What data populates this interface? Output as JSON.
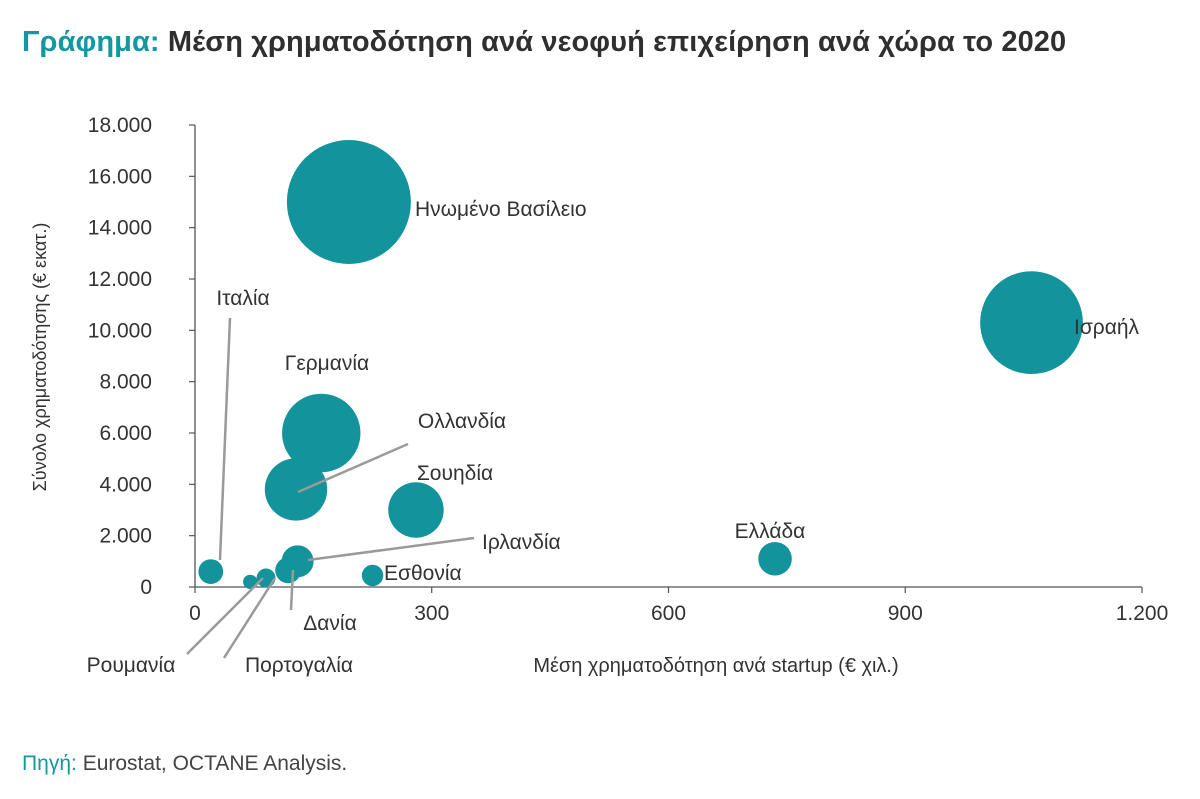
{
  "title": {
    "prefix": "Γράφημα:",
    "text": "Μέση χρηματοδότηση ανά νεοφυή επιχείρηση ανά χώρα το 2020"
  },
  "source": {
    "prefix": "Πηγή:",
    "text": "Eurostat, OCTANE Analysis."
  },
  "colors": {
    "bubble": "#13939c",
    "accent": "#1397a1",
    "leader": "#9a9a9a",
    "axis": "#555555"
  },
  "chart_data": {
    "type": "scatter",
    "title": "Μέση χρηματοδότηση ανά νεοφυή επιχείρηση ανά χώρα το 2020",
    "xlabel": "Μέση χρηματοδότηση ανά startup (€ χιλ.)",
    "ylabel": "Σύνολο χρηματοδότησης (€ εκατ.)",
    "xlim": [
      0,
      1200
    ],
    "ylim": [
      0,
      18000
    ],
    "xticks": [
      0,
      300,
      600,
      900,
      1200
    ],
    "xtick_labels": [
      "0",
      "300",
      "600",
      "900",
      "1.200"
    ],
    "yticks": [
      0,
      2000,
      4000,
      6000,
      8000,
      10000,
      12000,
      14000,
      16000,
      18000
    ],
    "ytick_labels": [
      "0",
      "2.000",
      "4.000",
      "6.000",
      "8.000",
      "10.000",
      "12.000",
      "14.000",
      "16.000",
      "18.000"
    ],
    "grid": false,
    "bubble_size": "Σύνολο χρηματοδότησης",
    "points": [
      {
        "name": "Ηνωμένο Βασίλειο",
        "x": 195,
        "y": 15000
      },
      {
        "name": "Ισραήλ",
        "x": 1060,
        "y": 10300
      },
      {
        "name": "Γερμανία",
        "x": 160,
        "y": 6000
      },
      {
        "name": "Ολλανδία",
        "x": 128,
        "y": 3800
      },
      {
        "name": "Σουηδία",
        "x": 280,
        "y": 3000
      },
      {
        "name": "Ελλάδα",
        "x": 735,
        "y": 1100
      },
      {
        "name": "Ιρλανδία",
        "x": 130,
        "y": 1000
      },
      {
        "name": "Εσθονία",
        "x": 225,
        "y": 450
      },
      {
        "name": "Ιταλία",
        "x": 20,
        "y": 600
      },
      {
        "name": "Δανία",
        "x": 118,
        "y": 650
      },
      {
        "name": "Πορτογαλία",
        "x": 90,
        "y": 350
      },
      {
        "name": "Ρουμανία",
        "x": 70,
        "y": 200
      }
    ]
  }
}
